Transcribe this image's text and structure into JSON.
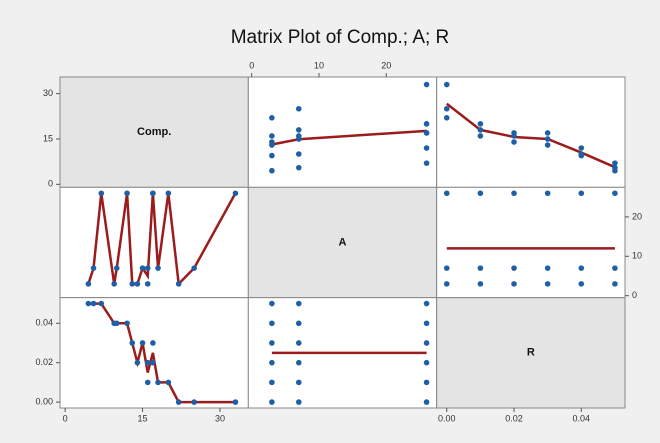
{
  "chart_data": {
    "type": "scatter_matrix",
    "title": "Matrix Plot of Comp.; A; R",
    "point_color": "#1f5fa8",
    "smoother_color": "#9b1c1c",
    "smoother": true,
    "variables": [
      {
        "name": "Comp.",
        "values": [
          22,
          25,
          33,
          16,
          18,
          20,
          14,
          16,
          17,
          13,
          15,
          17,
          9.5,
          10,
          12,
          4.5,
          5.5,
          7
        ],
        "lim": [
          -1,
          35.5
        ],
        "ticks": [
          0,
          15,
          30
        ]
      },
      {
        "name": "A",
        "values": [
          3,
          7,
          26,
          3,
          7,
          26,
          3,
          7,
          26,
          3,
          7,
          26,
          3,
          7,
          26,
          3,
          7,
          26
        ],
        "lim": [
          -0.5,
          27.5
        ],
        "ticks": [
          0,
          10,
          20
        ]
      },
      {
        "name": "R",
        "values": [
          0,
          0,
          0,
          0.01,
          0.01,
          0.01,
          0.02,
          0.02,
          0.02,
          0.03,
          0.03,
          0.03,
          0.04,
          0.04,
          0.04,
          0.05,
          0.05,
          0.05
        ],
        "lim": [
          -0.003,
          0.053
        ],
        "ticks": [
          {
            "value": 0,
            "label": "0.00"
          },
          {
            "value": 0.02,
            "label": "0.02"
          },
          {
            "value": 0.04,
            "label": "0.04"
          }
        ]
      }
    ]
  }
}
